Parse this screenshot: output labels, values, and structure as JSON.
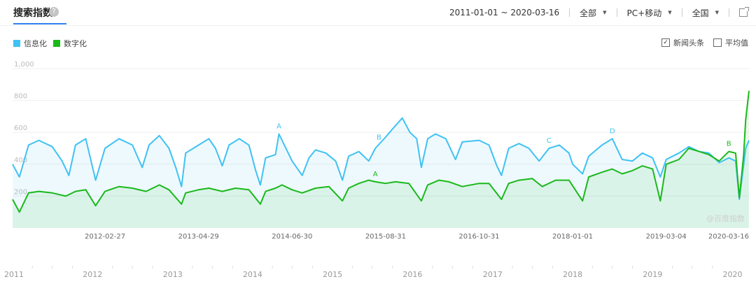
{
  "header": {
    "title": "搜索指数",
    "help_icon": "question-circle-icon",
    "date_range": "2011-01-01 ~ 2020-03-16",
    "region_filter": "全部",
    "device_filter": "PC+移动",
    "area_filter": "全国",
    "export_icon": "external-link-icon"
  },
  "options": {
    "headline_label": "新闻头条",
    "headline_checked": true,
    "average_label": "平均值",
    "average_checked": false
  },
  "watermark": "@百度指数",
  "colors": {
    "series_a": "#3ec2f3",
    "series_b": "#1ab91a",
    "accent": "#2f7ff0"
  },
  "chart_data": {
    "type": "line",
    "title": "",
    "xlabel": "",
    "ylabel": "",
    "ylim": [
      0,
      1000
    ],
    "yticks": [
      "1,000",
      "800",
      "600",
      "400",
      "200"
    ],
    "x_start": "2011-01-01",
    "x_end": "2020-03-16",
    "x_labels": [
      "2012-02-27",
      "2013-04-29",
      "2014-06-30",
      "2015-08-31",
      "2016-10-31",
      "2018-01-01",
      "2019-03-04",
      "2020-03-16"
    ],
    "overview_years": [
      "2011",
      "2012",
      "2013",
      "2014",
      "2015",
      "2016",
      "2017",
      "2018",
      "2019",
      "2020"
    ],
    "legend": "top-left",
    "grid": true,
    "series": [
      {
        "name": "信息化",
        "color": "#3ec2f3",
        "points": [
          [
            "2011-01-01",
            400
          ],
          [
            "2011-02-01",
            320
          ],
          [
            "2011-03-15",
            520
          ],
          [
            "2011-05-01",
            550
          ],
          [
            "2011-07-01",
            510
          ],
          [
            "2011-08-15",
            420
          ],
          [
            "2011-09-15",
            330
          ],
          [
            "2011-10-15",
            520
          ],
          [
            "2011-12-01",
            560
          ],
          [
            "2012-01-15",
            300
          ],
          [
            "2012-02-27",
            500
          ],
          [
            "2012-05-01",
            560
          ],
          [
            "2012-07-01",
            520
          ],
          [
            "2012-08-15",
            380
          ],
          [
            "2012-09-15",
            520
          ],
          [
            "2012-11-01",
            580
          ],
          [
            "2012-12-15",
            500
          ],
          [
            "2013-01-15",
            380
          ],
          [
            "2013-02-10",
            260
          ],
          [
            "2013-03-01",
            470
          ],
          [
            "2013-04-29",
            520
          ],
          [
            "2013-06-15",
            560
          ],
          [
            "2013-07-15",
            500
          ],
          [
            "2013-08-15",
            390
          ],
          [
            "2013-09-15",
            520
          ],
          [
            "2013-11-01",
            560
          ],
          [
            "2013-12-15",
            520
          ],
          [
            "2014-01-15",
            360
          ],
          [
            "2014-02-05",
            270
          ],
          [
            "2014-03-01",
            440
          ],
          [
            "2014-04-15",
            460
          ],
          [
            "2014-05-01",
            590
          ],
          [
            "2014-06-30",
            420
          ],
          [
            "2014-08-15",
            330
          ],
          [
            "2014-09-15",
            440
          ],
          [
            "2014-10-15",
            490
          ],
          [
            "2014-12-01",
            470
          ],
          [
            "2015-01-15",
            420
          ],
          [
            "2015-02-15",
            300
          ],
          [
            "2015-03-15",
            450
          ],
          [
            "2015-05-01",
            480
          ],
          [
            "2015-06-15",
            420
          ],
          [
            "2015-07-15",
            500
          ],
          [
            "2015-08-31",
            570
          ],
          [
            "2015-10-01",
            620
          ],
          [
            "2015-11-15",
            690
          ],
          [
            "2015-12-20",
            600
          ],
          [
            "2016-01-20",
            560
          ],
          [
            "2016-02-10",
            380
          ],
          [
            "2016-03-10",
            560
          ],
          [
            "2016-04-15",
            590
          ],
          [
            "2016-06-01",
            560
          ],
          [
            "2016-07-15",
            430
          ],
          [
            "2016-08-15",
            540
          ],
          [
            "2016-10-31",
            550
          ],
          [
            "2016-12-15",
            520
          ],
          [
            "2017-01-20",
            390
          ],
          [
            "2017-02-10",
            330
          ],
          [
            "2017-03-15",
            500
          ],
          [
            "2017-05-01",
            530
          ],
          [
            "2017-06-15",
            500
          ],
          [
            "2017-08-01",
            420
          ],
          [
            "2017-09-15",
            500
          ],
          [
            "2017-11-01",
            520
          ],
          [
            "2017-12-15",
            470
          ],
          [
            "2018-01-01",
            400
          ],
          [
            "2018-02-15",
            340
          ],
          [
            "2018-03-15",
            450
          ],
          [
            "2018-05-15",
            520
          ],
          [
            "2018-07-01",
            560
          ],
          [
            "2018-08-15",
            430
          ],
          [
            "2018-10-01",
            420
          ],
          [
            "2018-11-15",
            470
          ],
          [
            "2019-01-01",
            440
          ],
          [
            "2019-02-05",
            320
          ],
          [
            "2019-03-04",
            430
          ],
          [
            "2019-05-01",
            470
          ],
          [
            "2019-06-15",
            510
          ],
          [
            "2019-08-01",
            480
          ],
          [
            "2019-09-15",
            470
          ],
          [
            "2019-11-01",
            410
          ],
          [
            "2019-12-15",
            440
          ],
          [
            "2020-01-15",
            420
          ],
          [
            "2020-02-01",
            180
          ],
          [
            "2020-02-20",
            390
          ],
          [
            "2020-03-01",
            500
          ],
          [
            "2020-03-16",
            550
          ]
        ]
      },
      {
        "name": "数字化",
        "color": "#1ab91a",
        "points": [
          [
            "2011-01-01",
            180
          ],
          [
            "2011-02-01",
            100
          ],
          [
            "2011-03-15",
            220
          ],
          [
            "2011-05-01",
            230
          ],
          [
            "2011-07-01",
            220
          ],
          [
            "2011-09-01",
            200
          ],
          [
            "2011-10-15",
            230
          ],
          [
            "2011-12-01",
            240
          ],
          [
            "2012-01-15",
            140
          ],
          [
            "2012-02-27",
            230
          ],
          [
            "2012-05-01",
            260
          ],
          [
            "2012-07-01",
            250
          ],
          [
            "2012-09-01",
            230
          ],
          [
            "2012-11-01",
            270
          ],
          [
            "2012-12-15",
            240
          ],
          [
            "2013-02-10",
            150
          ],
          [
            "2013-03-01",
            220
          ],
          [
            "2013-04-29",
            240
          ],
          [
            "2013-06-15",
            250
          ],
          [
            "2013-08-15",
            230
          ],
          [
            "2013-10-15",
            250
          ],
          [
            "2013-12-15",
            240
          ],
          [
            "2014-02-05",
            150
          ],
          [
            "2014-03-01",
            230
          ],
          [
            "2014-04-15",
            250
          ],
          [
            "2014-05-15",
            270
          ],
          [
            "2014-06-30",
            240
          ],
          [
            "2014-08-15",
            220
          ],
          [
            "2014-10-15",
            250
          ],
          [
            "2014-12-15",
            260
          ],
          [
            "2015-02-15",
            170
          ],
          [
            "2015-03-15",
            250
          ],
          [
            "2015-05-01",
            280
          ],
          [
            "2015-06-15",
            300
          ],
          [
            "2015-07-15",
            290
          ],
          [
            "2015-08-31",
            280
          ],
          [
            "2015-10-15",
            290
          ],
          [
            "2015-12-15",
            280
          ],
          [
            "2016-02-10",
            170
          ],
          [
            "2016-03-10",
            270
          ],
          [
            "2016-05-01",
            300
          ],
          [
            "2016-06-15",
            290
          ],
          [
            "2016-08-15",
            260
          ],
          [
            "2016-10-31",
            280
          ],
          [
            "2016-12-15",
            280
          ],
          [
            "2017-02-10",
            180
          ],
          [
            "2017-03-15",
            280
          ],
          [
            "2017-05-01",
            300
          ],
          [
            "2017-07-01",
            310
          ],
          [
            "2017-08-15",
            260
          ],
          [
            "2017-10-15",
            300
          ],
          [
            "2017-12-15",
            300
          ],
          [
            "2018-02-15",
            170
          ],
          [
            "2018-03-15",
            320
          ],
          [
            "2018-05-15",
            350
          ],
          [
            "2018-07-01",
            370
          ],
          [
            "2018-08-15",
            340
          ],
          [
            "2018-10-01",
            360
          ],
          [
            "2018-11-15",
            390
          ],
          [
            "2019-01-01",
            370
          ],
          [
            "2019-02-05",
            170
          ],
          [
            "2019-03-04",
            400
          ],
          [
            "2019-05-01",
            430
          ],
          [
            "2019-06-15",
            500
          ],
          [
            "2019-08-01",
            480
          ],
          [
            "2019-09-15",
            460
          ],
          [
            "2019-11-01",
            420
          ],
          [
            "2019-12-15",
            480
          ],
          [
            "2020-01-15",
            470
          ],
          [
            "2020-02-01",
            190
          ],
          [
            "2020-02-20",
            450
          ],
          [
            "2020-03-01",
            680
          ],
          [
            "2020-03-16",
            860
          ]
        ]
      }
    ],
    "annotations": [
      {
        "label": "A",
        "series": "信息化",
        "date": "2014-05-01",
        "value": 590
      },
      {
        "label": "B",
        "series": "信息化",
        "date": "2015-08-01",
        "value": 520
      },
      {
        "label": "A",
        "series": "数字化",
        "date": "2015-07-15",
        "value": 290
      },
      {
        "label": "C",
        "series": "信息化",
        "date": "2017-09-15",
        "value": 500
      },
      {
        "label": "D",
        "series": "信息化",
        "date": "2018-07-01",
        "value": 560
      },
      {
        "label": "B",
        "series": "数字化",
        "date": "2019-12-15",
        "value": 480
      }
    ]
  }
}
